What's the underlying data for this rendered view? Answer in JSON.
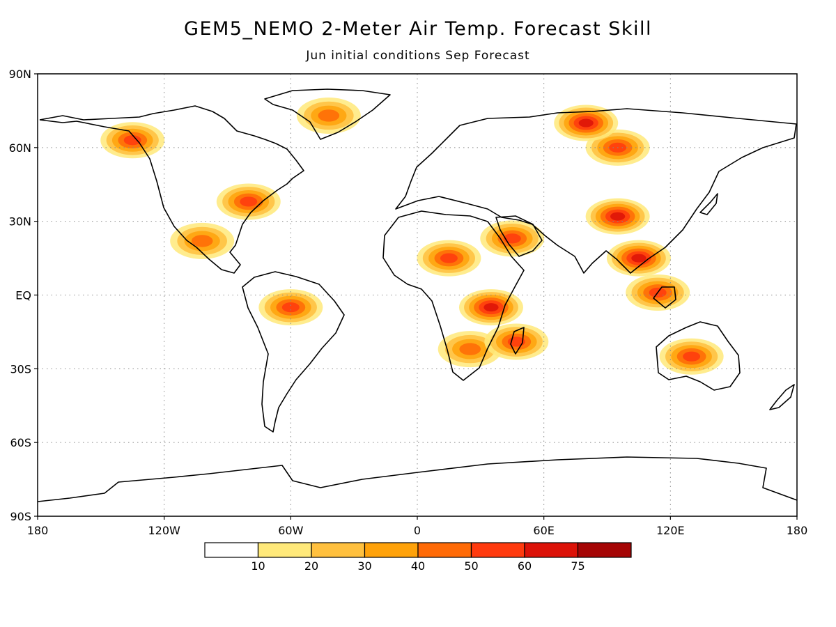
{
  "title": "GEM5_NEMO 2-Meter Air Temp. Forecast Skill",
  "subtitle": "Jun initial conditions  Sep Forecast",
  "map": {
    "projection": "cylindrical equidistant",
    "lon_range": [
      -180,
      180
    ],
    "lat_range": [
      -90,
      90
    ],
    "grid": "dotted",
    "x_ticks": [
      {
        "value": -180,
        "label": "180"
      },
      {
        "value": -120,
        "label": "120W"
      },
      {
        "value": -60,
        "label": "60W"
      },
      {
        "value": 0,
        "label": "0"
      },
      {
        "value": 60,
        "label": "60E"
      },
      {
        "value": 120,
        "label": "120E"
      },
      {
        "value": 180,
        "label": "180"
      }
    ],
    "y_ticks": [
      {
        "value": 90,
        "label": "90N"
      },
      {
        "value": 60,
        "label": "60N"
      },
      {
        "value": 30,
        "label": "30N"
      },
      {
        "value": 0,
        "label": "EQ"
      },
      {
        "value": -30,
        "label": "30S"
      },
      {
        "value": -60,
        "label": "60S"
      },
      {
        "value": -90,
        "label": "90S"
      }
    ]
  },
  "colorbar": {
    "levels": [
      "10",
      "20",
      "30",
      "40",
      "50",
      "60",
      "75"
    ],
    "colors": [
      "#ffffff",
      "#ffe97a",
      "#ffc03e",
      "#ffa20a",
      "#ff6a06",
      "#ff3a0e",
      "#dc1208",
      "#a50505"
    ]
  },
  "skill_regions": [
    {
      "name": "alaska-canada",
      "lon": -135,
      "lat": 63,
      "level": 5
    },
    {
      "name": "eastern-usa",
      "lon": -80,
      "lat": 38,
      "level": 5
    },
    {
      "name": "greenland",
      "lon": -42,
      "lat": 73,
      "level": 4
    },
    {
      "name": "siberia",
      "lon": 95,
      "lat": 60,
      "level": 5
    },
    {
      "name": "arctic-russia",
      "lon": 80,
      "lat": 70,
      "level": 6
    },
    {
      "name": "tibet-china",
      "lon": 95,
      "lat": 32,
      "level": 6
    },
    {
      "name": "arabia",
      "lon": 45,
      "lat": 23,
      "level": 5
    },
    {
      "name": "sahel",
      "lon": 15,
      "lat": 15,
      "level": 5
    },
    {
      "name": "east-africa",
      "lon": 35,
      "lat": -5,
      "level": 6
    },
    {
      "name": "amazon",
      "lon": -60,
      "lat": -5,
      "level": 5
    },
    {
      "name": "southern-africa",
      "lon": 25,
      "lat": -22,
      "level": 4
    },
    {
      "name": "australia",
      "lon": 130,
      "lat": -25,
      "level": 5
    },
    {
      "name": "mexico",
      "lon": -102,
      "lat": 22,
      "level": 4
    },
    {
      "name": "se-asia",
      "lon": 105,
      "lat": 15,
      "level": 6
    },
    {
      "name": "madagascar",
      "lon": 47,
      "lat": -19,
      "level": 5
    },
    {
      "name": "borneo",
      "lon": 114,
      "lat": 1,
      "level": 5
    }
  ]
}
